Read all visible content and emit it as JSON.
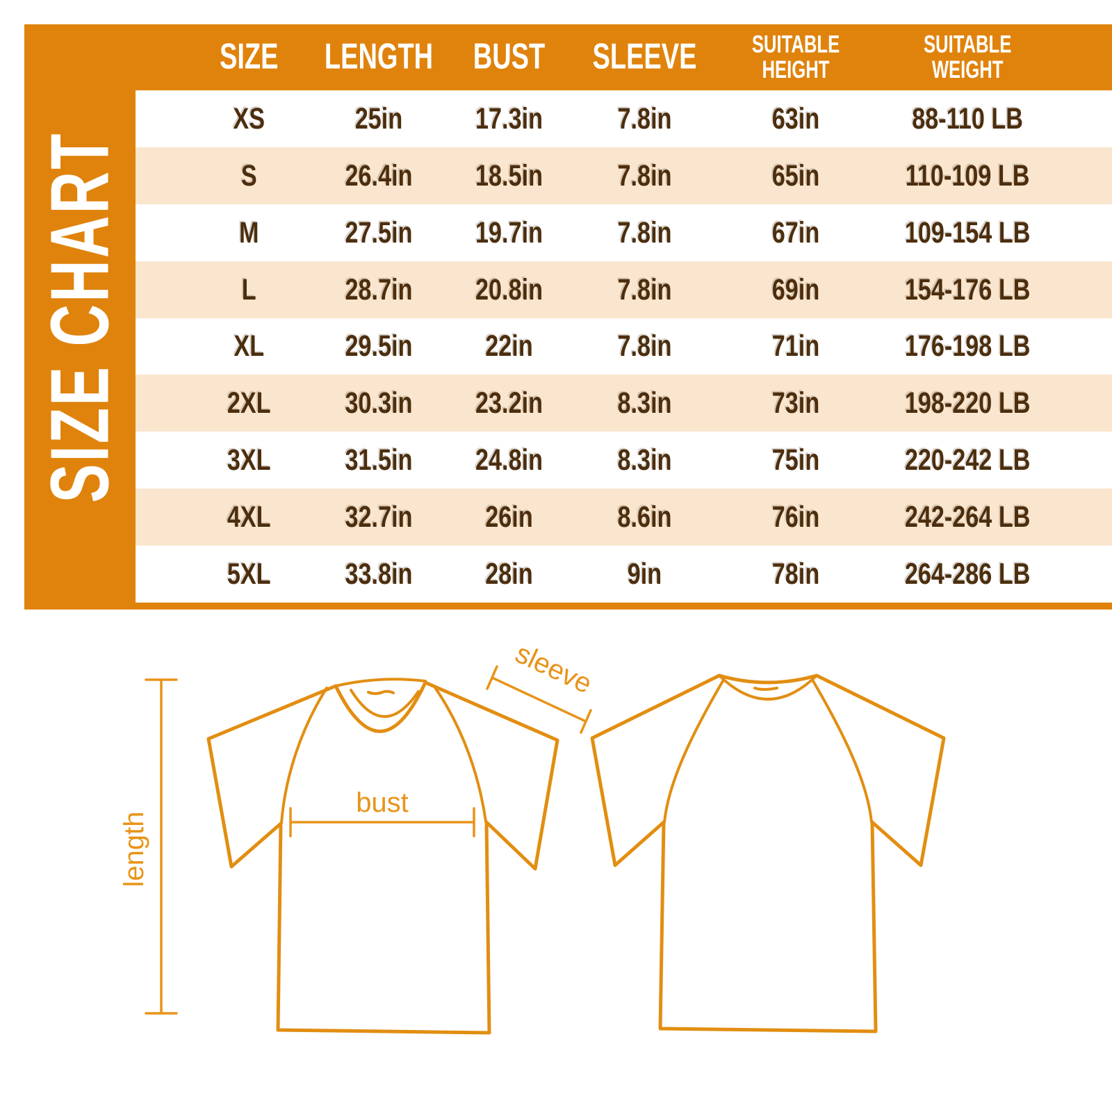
{
  "title": "SIZE CHART",
  "table": {
    "columns": [
      "SIZE",
      "LENGTH",
      "BUST",
      "SLEEVE",
      "SUITABLE\nHEIGHT",
      "SUITABLE\nWEIGHT"
    ],
    "rows": [
      [
        "XS",
        "25in",
        "17.3in",
        "7.8in",
        "63in",
        "88-110 LB"
      ],
      [
        "S",
        "26.4in",
        "18.5in",
        "7.8in",
        "65in",
        "110-109 LB"
      ],
      [
        "M",
        "27.5in",
        "19.7in",
        "7.8in",
        "67in",
        "109-154 LB"
      ],
      [
        "L",
        "28.7in",
        "20.8in",
        "7.8in",
        "69in",
        "154-176 LB"
      ],
      [
        "XL",
        "29.5in",
        "22in",
        "7.8in",
        "71in",
        "176-198 LB"
      ],
      [
        "2XL",
        "30.3in",
        "23.2in",
        "8.3in",
        "73in",
        "198-220 LB"
      ],
      [
        "3XL",
        "31.5in",
        "24.8in",
        "8.3in",
        "75in",
        "220-242 LB"
      ],
      [
        "4XL",
        "32.7in",
        "26in",
        "8.6in",
        "76in",
        "242-264 LB"
      ],
      [
        "5XL",
        "33.8in",
        "28in",
        "9in",
        "78in",
        "264-286 LB"
      ]
    ]
  },
  "diagram": {
    "length_label": "length",
    "bust_label": "bust",
    "sleeve_label": "sleeve"
  },
  "colors": {
    "orange": "#E0830C",
    "row_peach": "#FAE6CE",
    "row_white": "#FFFFFF",
    "text_brown": "#4C2E0E",
    "header_text": "#FFFFFF",
    "shirt_outline": "#E28E12",
    "annotation": "#E8941A"
  },
  "chart_data": {
    "type": "table",
    "title": "SIZE CHART",
    "columns": [
      "SIZE",
      "LENGTH",
      "BUST",
      "SLEEVE",
      "SUITABLE HEIGHT",
      "SUITABLE WEIGHT"
    ],
    "rows": [
      [
        "XS",
        "25in",
        "17.3in",
        "7.8in",
        "63in",
        "88-110 LB"
      ],
      [
        "S",
        "26.4in",
        "18.5in",
        "7.8in",
        "65in",
        "110-109 LB"
      ],
      [
        "M",
        "27.5in",
        "19.7in",
        "7.8in",
        "67in",
        "109-154 LB"
      ],
      [
        "L",
        "28.7in",
        "20.8in",
        "7.8in",
        "69in",
        "154-176 LB"
      ],
      [
        "XL",
        "29.5in",
        "22in",
        "7.8in",
        "71in",
        "176-198 LB"
      ],
      [
        "2XL",
        "30.3in",
        "23.2in",
        "8.3in",
        "73in",
        "198-220 LB"
      ],
      [
        "3XL",
        "31.5in",
        "24.8in",
        "8.3in",
        "75in",
        "220-242 LB"
      ],
      [
        "4XL",
        "32.7in",
        "26in",
        "8.6in",
        "76in",
        "242-264 LB"
      ],
      [
        "5XL",
        "33.8in",
        "28in",
        "9in",
        "78in",
        "264-286 LB"
      ]
    ]
  }
}
